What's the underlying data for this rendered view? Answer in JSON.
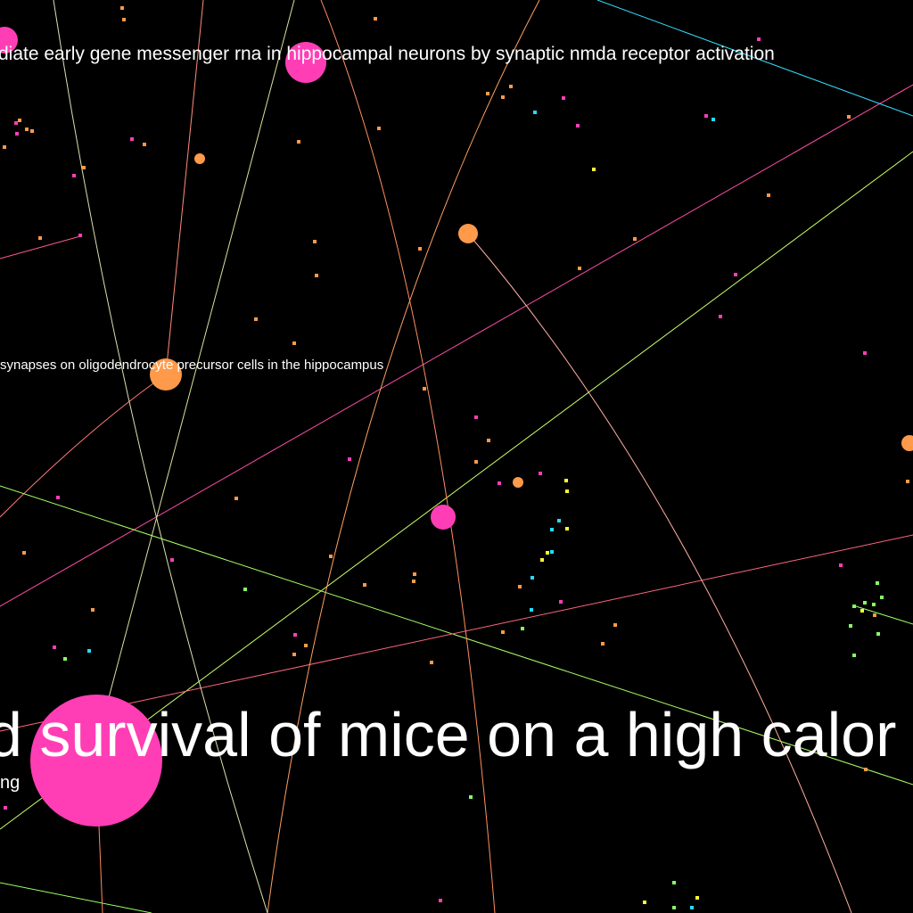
{
  "nodes": [
    {
      "label": "diate early gene messenger rna in hippocampal neurons by synaptic nmda receptor activation"
    },
    {
      "label": "synapses on oligodendrocyte precursor cells in the hippocampus"
    },
    {
      "label": "d survival of mice on a high calor"
    },
    {
      "label": "ng"
    }
  ]
}
